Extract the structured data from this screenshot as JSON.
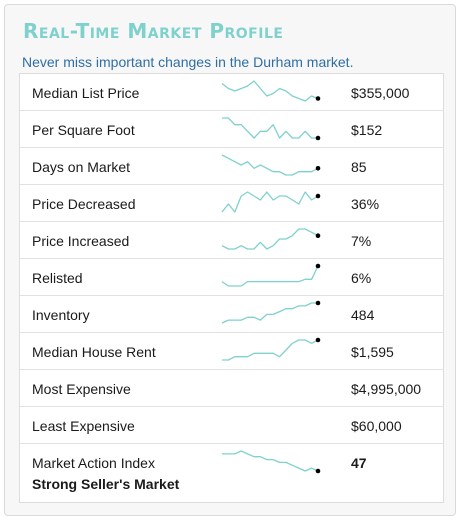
{
  "header": {
    "title": "Real-Time Market Profile",
    "subtitle": "Never miss important changes in the Durham market."
  },
  "colors": {
    "accent": "#7fd1cd",
    "subtitle": "#2f6ea5",
    "marker": "#000000"
  },
  "rows": [
    {
      "label": "Median List Price",
      "value": "$355,000",
      "trend": [
        8,
        6,
        5,
        6,
        7,
        9,
        6,
        3,
        4,
        6,
        5,
        3,
        2,
        1,
        3,
        2
      ]
    },
    {
      "label": "Per Square Foot",
      "value": "$152",
      "trend": [
        6,
        6,
        5,
        5,
        4,
        3,
        4,
        4,
        5,
        3,
        4,
        3,
        3,
        4,
        3,
        3
      ]
    },
    {
      "label": "Days on Market",
      "value": "85",
      "trend": [
        9,
        8,
        7,
        6,
        7,
        5,
        6,
        5,
        4,
        4,
        3,
        3,
        4,
        4,
        4,
        5
      ]
    },
    {
      "label": "Price Decreased",
      "value": "36%",
      "trend": [
        3,
        5,
        3,
        7,
        8,
        7,
        6,
        8,
        6,
        7,
        7,
        6,
        5,
        8,
        6,
        7
      ]
    },
    {
      "label": "Price Increased",
      "value": "7%",
      "trend": [
        5,
        4,
        4,
        5,
        4,
        4,
        6,
        4,
        5,
        7,
        7,
        8,
        10,
        10,
        9,
        8
      ]
    },
    {
      "label": "Relisted",
      "value": "6%",
      "trend": [
        4,
        2,
        2,
        2,
        4,
        4,
        4,
        4,
        4,
        4,
        4,
        4,
        4,
        5,
        5,
        11
      ]
    },
    {
      "label": "Inventory",
      "value": "484",
      "trend": [
        1,
        2,
        2,
        2,
        3,
        3,
        2,
        4,
        4,
        5,
        6,
        6,
        7,
        7,
        8,
        8
      ]
    },
    {
      "label": "Median House Rent",
      "value": "$1,595",
      "trend": [
        2,
        2,
        3,
        3,
        3,
        4,
        4,
        4,
        4,
        3,
        5,
        7,
        8,
        8,
        7,
        8
      ]
    },
    {
      "label": "Most Expensive",
      "value": "$4,995,000",
      "trend": []
    },
    {
      "label": "Least Expensive",
      "value": "$60,000",
      "trend": []
    }
  ],
  "market_action": {
    "label": "Market Action Index",
    "sublabel": "Strong Seller's Market",
    "value": "47",
    "trend": [
      10,
      10,
      10,
      11,
      10,
      9,
      9,
      8,
      8,
      7,
      7,
      6,
      5,
      4,
      5,
      4
    ]
  }
}
